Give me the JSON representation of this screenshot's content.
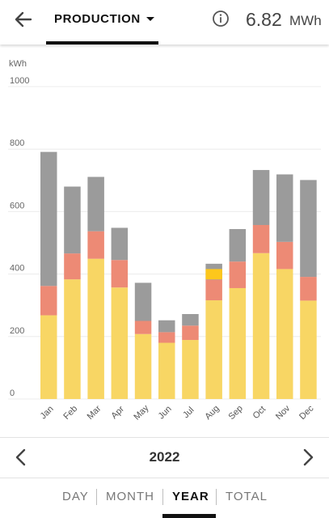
{
  "header": {
    "back_icon": "arrow-left-icon",
    "tab_label": "PRODUCTION",
    "info_icon": "info-circle-icon",
    "total_value": "6.82",
    "total_unit": "MWh"
  },
  "navigation": {
    "prev_icon": "chevron-left-icon",
    "next_icon": "chevron-right-icon",
    "year": "2022"
  },
  "period_tabs": [
    "DAY",
    "MONTH",
    "YEAR",
    "TOTAL"
  ],
  "active_period": "YEAR",
  "colors": {
    "self_consumed": "#f8d664",
    "highlight": "#fdc71c",
    "battery": "#ed8a75",
    "export": "#9b9b9b",
    "grid": "#ececec"
  },
  "chart_data": {
    "type": "bar",
    "stacked": true,
    "ylabel": "kWh",
    "ylim": [
      0,
      1000
    ],
    "yticks": [
      0,
      200,
      400,
      600,
      800,
      1000
    ],
    "categories": [
      "Jan",
      "Feb",
      "Mar",
      "Apr",
      "May",
      "Jun",
      "Jul",
      "Aug",
      "Sep",
      "Oct",
      "Nov",
      "Dec"
    ],
    "series": [
      {
        "color": "#f8d664",
        "values": [
          268,
          383,
          449,
          357,
          208,
          180,
          189,
          316,
          355,
          467,
          416,
          315
        ]
      },
      {
        "color": "#ed8a75",
        "values": [
          94,
          83,
          88,
          88,
          42,
          34,
          46,
          66,
          85,
          90,
          87,
          76
        ]
      },
      {
        "color": "#9b9b9b",
        "values": [
          429,
          214,
          174,
          103,
          122,
          38,
          37,
          51,
          104,
          176,
          216,
          310
        ]
      }
    ],
    "highlight": {
      "category": "Aug",
      "color": "#fdc71c",
      "value": 33,
      "from": 383
    }
  }
}
